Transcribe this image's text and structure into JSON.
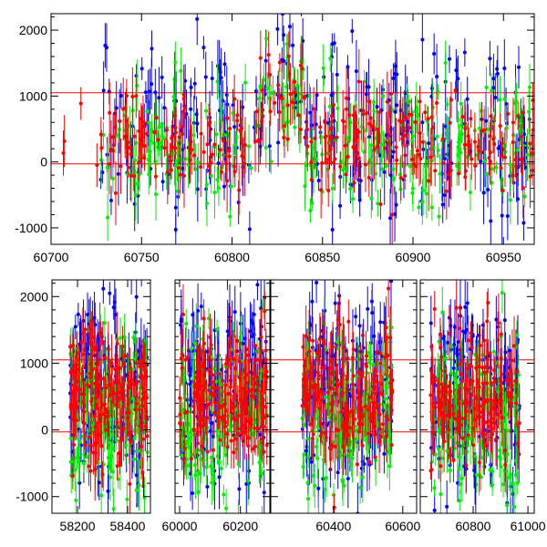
{
  "chart_data": [
    {
      "type": "scatter",
      "title": "",
      "xlabel": "",
      "ylabel": "",
      "xlim": [
        60700,
        60967
      ],
      "ylim": [
        -1250,
        2250
      ],
      "xticks": [
        "60700",
        "60750",
        "60800",
        "60850",
        "60900",
        "60950"
      ],
      "xtick_values": [
        60700,
        60750,
        60800,
        60850,
        60900,
        60950
      ],
      "yticks": [
        "-1000",
        "0",
        "1000",
        "2000"
      ],
      "ytick_values": [
        -1000,
        0,
        1000,
        2000
      ],
      "reference_lines": [
        1050,
        -30
      ],
      "series": [
        {
          "name": "blue",
          "color": "#0000ff",
          "x_range": [
            60727,
            60967
          ],
          "mean": 500,
          "spread": 900,
          "error": 250
        },
        {
          "name": "green",
          "color": "#00ee00",
          "x_range": [
            60727,
            60967
          ],
          "mean": 200,
          "spread": 700,
          "error": 200
        },
        {
          "name": "red",
          "color": "#ff0000",
          "x_range": [
            60700,
            60967
          ],
          "mean": 300,
          "spread": 550,
          "error": 250
        }
      ]
    },
    {
      "type": "scatter",
      "title": "",
      "broken_axis": true,
      "segments": [
        {
          "xlim": [
            58098,
            58491
          ],
          "data_range": [
            58170,
            58480
          ],
          "xticks": [
            "58200",
            "58400"
          ],
          "xtick_values": [
            58200,
            58400
          ]
        },
        {
          "xlim": [
            59985,
            60297
          ],
          "data_range": [
            60000,
            60290
          ],
          "xticks": [
            "60000",
            "60200"
          ],
          "xtick_values": [
            60000,
            60200
          ]
        },
        {
          "xlim": [
            60219,
            60640
          ],
          "data_range": [
            60310,
            60570
          ],
          "xticks": [
            "60400",
            "60600"
          ],
          "xtick_values": [
            60400,
            60600
          ]
        },
        {
          "xlim": [
            60607,
            61023
          ],
          "data_range": [
            60645,
            60970
          ],
          "xticks": [
            "60800",
            "61000"
          ],
          "xtick_values": [
            60800,
            61000
          ]
        }
      ],
      "ylim": [
        -1250,
        2250
      ],
      "yticks": [
        "-1000",
        "0",
        "1000",
        "2000"
      ],
      "ytick_values": [
        -1000,
        0,
        1000,
        2000
      ],
      "reference_lines": [
        1050,
        -30
      ],
      "series": [
        {
          "name": "blue",
          "color": "#0000ff",
          "mean": 600,
          "spread": 1000,
          "error": 250
        },
        {
          "name": "green",
          "color": "#00ee00",
          "mean": 300,
          "spread": 900,
          "error": 200
        },
        {
          "name": "red",
          "color": "#ff0000",
          "mean": 500,
          "spread": 700,
          "error": 250
        }
      ]
    }
  ]
}
